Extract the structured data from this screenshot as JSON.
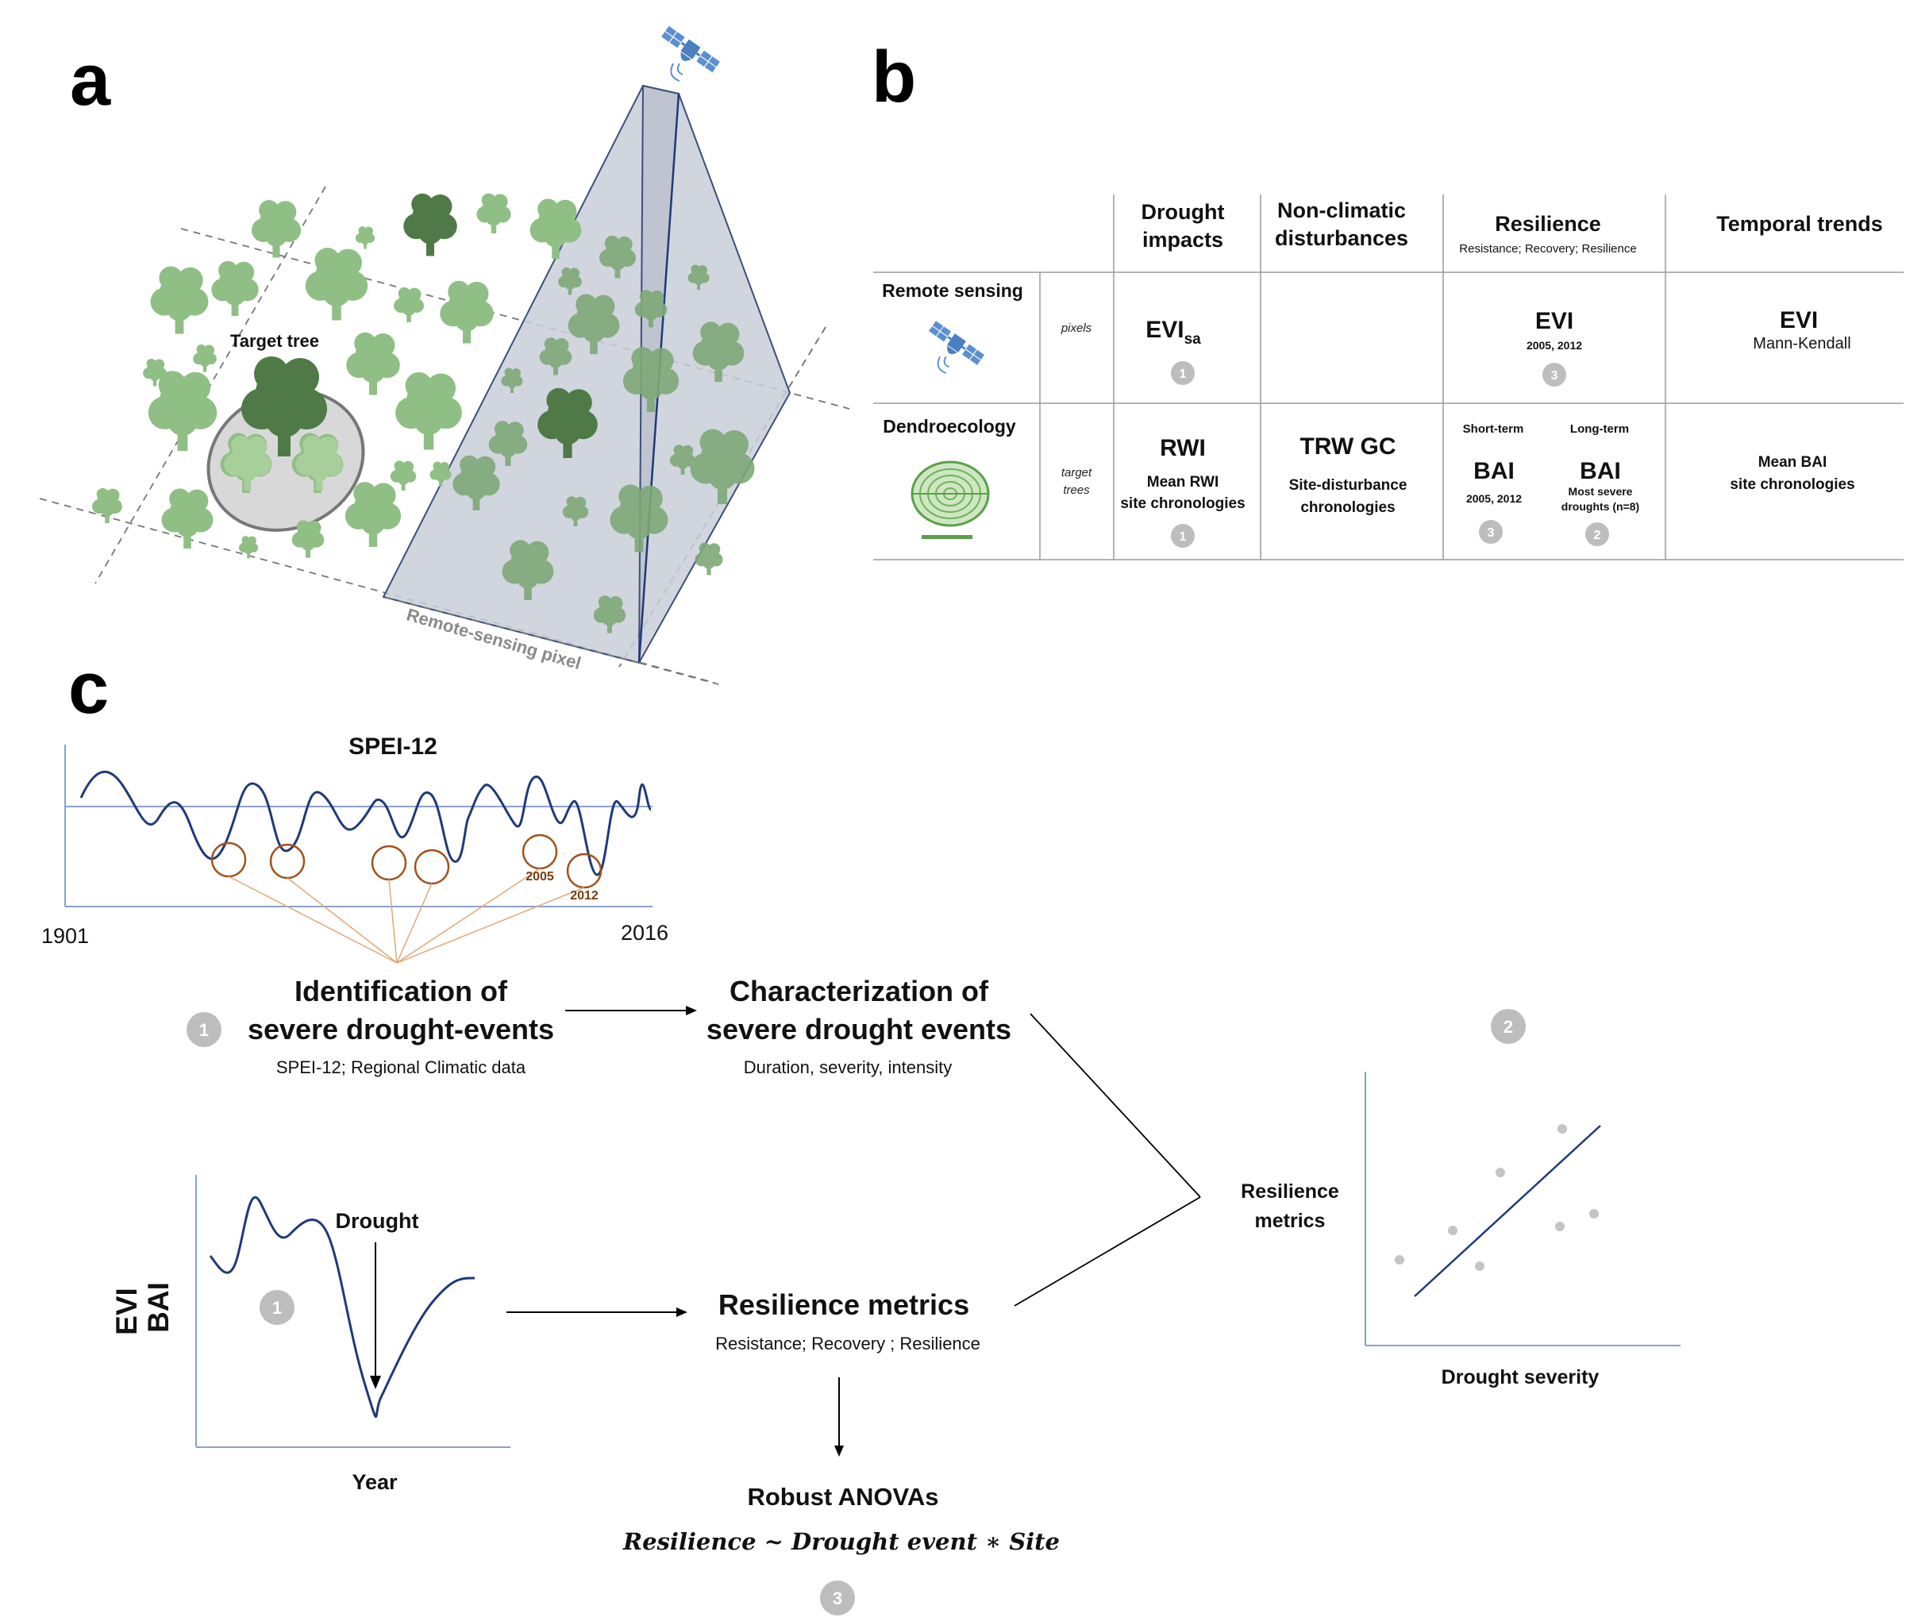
{
  "panels": {
    "a": "a",
    "b": "b",
    "c": "c"
  },
  "panel_a": {
    "target_tree_label": "Target tree",
    "pixel_label": "Remote-sensing pixel"
  },
  "panel_b": {
    "columns": {
      "drought": [
        "Drought",
        "impacts"
      ],
      "nonclimatic": [
        "Non-climatic",
        "disturbances"
      ],
      "resilience": "Resilience",
      "resilience_sub": "Resistance; Recovery; Resilience",
      "temporal": "Temporal trends"
    },
    "rows": {
      "remote": {
        "label": "Remote sensing",
        "unit": "pixels",
        "drought_main": "EVI",
        "drought_sub": "sa",
        "drought_badge": "1",
        "resilience_main": "EVI",
        "resilience_years": "2005, 2012",
        "resilience_badge": "3",
        "temporal_main": "EVI",
        "temporal_sub": "Mann-Kendall"
      },
      "dendro": {
        "label": "Dendroecology",
        "unit": [
          "target",
          "trees"
        ],
        "drought_main": "RWI",
        "drought_sub": [
          "Mean RWI",
          "site chronologies"
        ],
        "drought_badge": "1",
        "nonclimatic_main": "TRW  GC",
        "nonclimatic_sub": [
          "Site-disturbance",
          "chronologies"
        ],
        "short_term": "Short-term",
        "long_term": "Long-term",
        "short_main": "BAI",
        "short_years": "2005, 2012",
        "short_badge": "3",
        "long_main": "BAI",
        "long_sub": "Most severe",
        "long_sub2": "droughts (n=8)",
        "long_badge": "2",
        "temporal_sub": [
          "Mean BAI",
          "site chronologies"
        ]
      }
    }
  },
  "panel_c": {
    "spei_title": "SPEI-12",
    "year_start": "1901",
    "year_end": "2016",
    "mark_2005": "2005",
    "mark_2012": "2012",
    "identification": [
      "Identification of",
      "severe drought-events"
    ],
    "identification_sub": "SPEI-12; Regional Climatic data",
    "identification_badge": "1",
    "characterization": [
      "Characterization of",
      "severe drought events"
    ],
    "characterization_sub": "Duration, severity, intensity",
    "scatter_badge": "2",
    "resilience_metrics_label": [
      "Resilience",
      "metrics"
    ],
    "scatter_xlabel": "Drought severity",
    "ts_ylabel1": "EVI",
    "ts_ylabel2": "BAI",
    "ts_xlabel": "Year",
    "drought_label": "Drought",
    "ts_badge": "1",
    "metrics_title": "Resilience metrics",
    "metrics_sub": "Resistance; Recovery ; Resilience",
    "anova_title": "Robust ANOVAs",
    "anova_formula": "Resilience ~ Drought event  ∗ Site",
    "anova_badge": "3"
  },
  "colors": {
    "tree_light": "#8fbf84",
    "tree_dark": "#4f7a47",
    "pixel_fill": "#c9ced8",
    "line_navy": "#1f3a7a",
    "circle_orange": "#a0521c",
    "satellite_blue": "#5b8fcf",
    "badge_grey": "#bdbdbd"
  }
}
